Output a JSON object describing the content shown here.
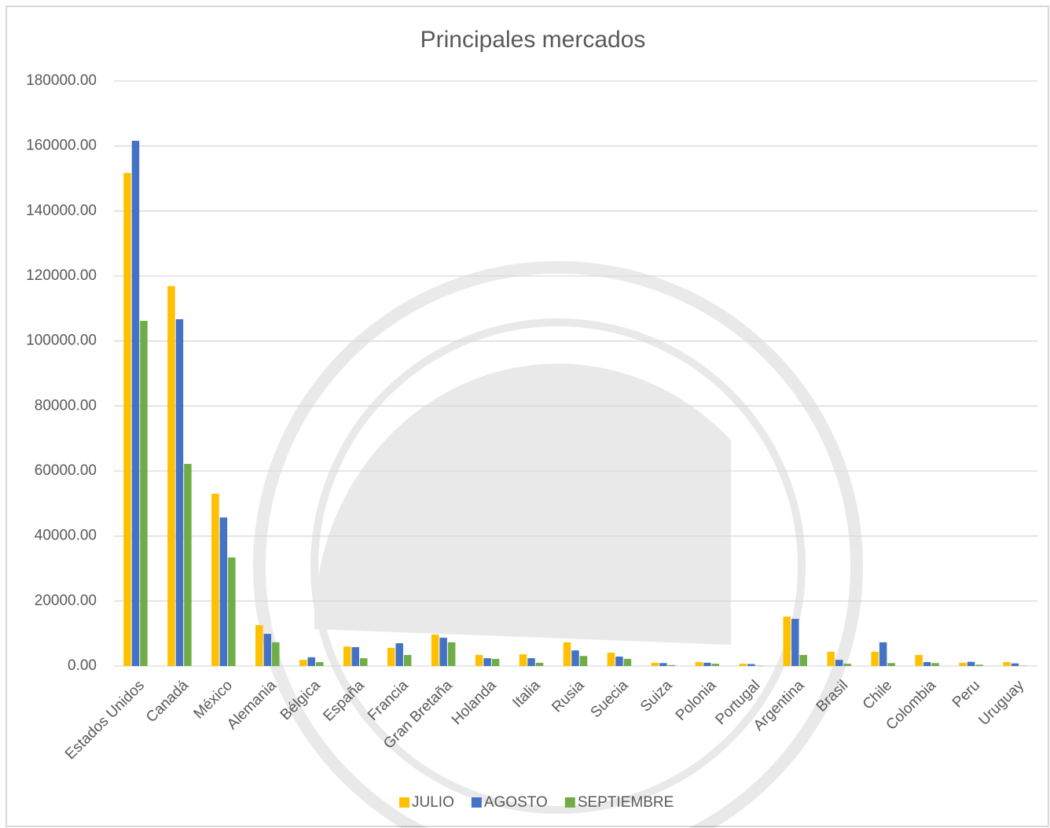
{
  "chart_data": {
    "type": "bar",
    "title": "Principales mercados",
    "categories": [
      "Estados Unidos",
      "Canadá",
      "México",
      "Alemania",
      "Bélgica",
      "España",
      "Francia",
      "Gran Bretaña",
      "Holanda",
      "Italia",
      "Rusia",
      "Suecia",
      "Suiza",
      "Polonia",
      "Portugal",
      "Argentina",
      "Brasil",
      "Chile",
      "Colombia",
      "Peru",
      "Uruguay"
    ],
    "series": [
      {
        "name": "JULIO",
        "color": "#ffc000",
        "values": [
          151700,
          116900,
          53000,
          12600,
          1900,
          6000,
          5600,
          9700,
          3400,
          3600,
          7300,
          4100,
          1000,
          1200,
          700,
          15200,
          4400,
          4400,
          3400,
          1000,
          1200
        ]
      },
      {
        "name": "AGOSTO",
        "color": "#4472c4",
        "values": [
          161600,
          106700,
          45700,
          9900,
          2700,
          5800,
          7000,
          8700,
          2400,
          2400,
          4800,
          2900,
          900,
          1000,
          600,
          14500,
          1900,
          7300,
          1200,
          1300,
          800
        ]
      },
      {
        "name": "SEPTIEMBRE",
        "color": "#70ad47",
        "values": [
          106200,
          62200,
          33400,
          7300,
          1200,
          2400,
          3400,
          7300,
          2200,
          1000,
          3100,
          2200,
          300,
          700,
          100,
          3400,
          700,
          900,
          900,
          400,
          100
        ]
      }
    ],
    "ylim": [
      0,
      180000
    ],
    "yticks": [
      {
        "value": 0,
        "label": "0.00"
      },
      {
        "value": 20000,
        "label": "20000.00"
      },
      {
        "value": 40000,
        "label": "40000.00"
      },
      {
        "value": 60000,
        "label": "60000.00"
      },
      {
        "value": 80000,
        "label": "80000.00"
      },
      {
        "value": 100000,
        "label": "100000.00"
      },
      {
        "value": 120000,
        "label": "120000.00"
      },
      {
        "value": 140000,
        "label": "140000.00"
      },
      {
        "value": 160000,
        "label": "160000.00"
      },
      {
        "value": 180000,
        "label": "180000.00"
      }
    ],
    "grid": true,
    "legend": "bottom"
  }
}
